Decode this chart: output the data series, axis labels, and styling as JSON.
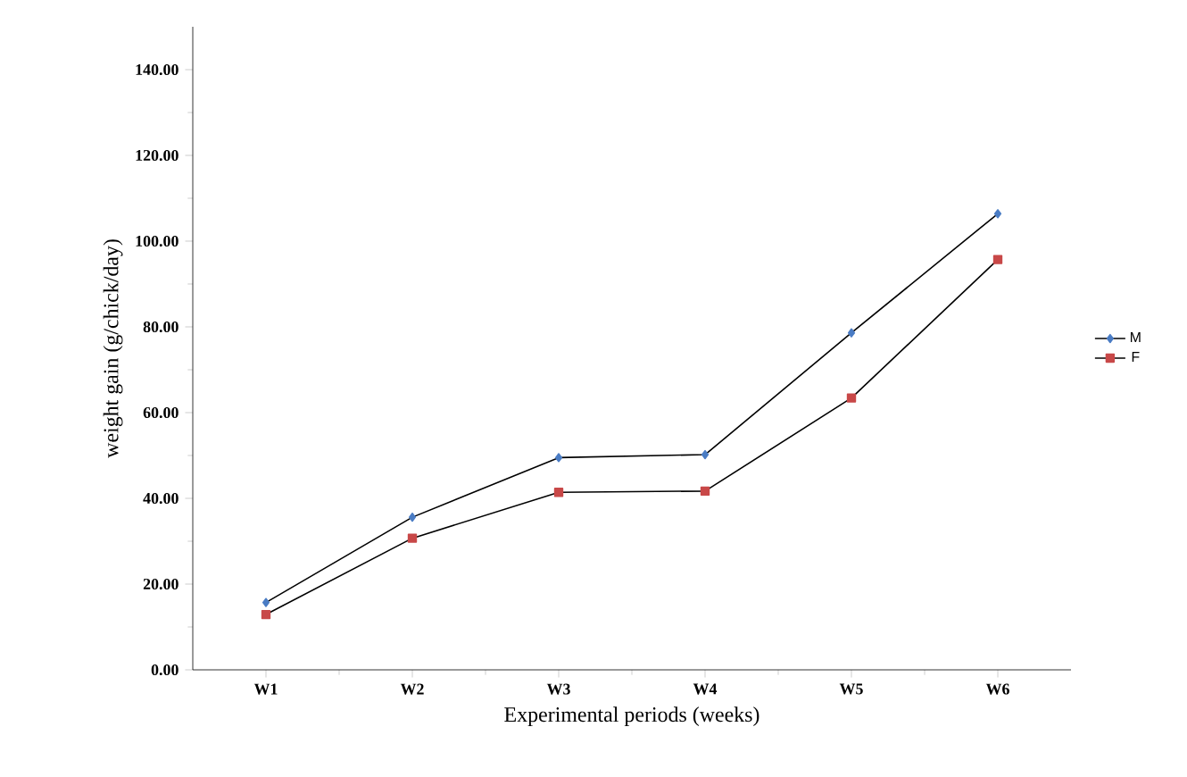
{
  "chart_data": {
    "type": "line",
    "xlabel": "Experimental periods (weeks)",
    "ylabel": "weight gain (g/chick/day)",
    "categories": [
      "W1",
      "W2",
      "W3",
      "W4",
      "W5",
      "W6"
    ],
    "series": [
      {
        "name": "M",
        "color": "#4a7cc4",
        "marker": "diamond",
        "values": [
          15.7,
          35.6,
          49.5,
          50.2,
          78.6,
          106.4
        ]
      },
      {
        "name": "F",
        "color": "#c84848",
        "marker": "square",
        "values": [
          12.9,
          30.7,
          41.4,
          41.7,
          63.4,
          95.7
        ]
      }
    ],
    "ylim": [
      0,
      150
    ],
    "yticks": [
      {
        "value": 0,
        "label": "0.00"
      },
      {
        "value": 20,
        "label": "20.00"
      },
      {
        "value": 40,
        "label": "40.00"
      },
      {
        "value": 60,
        "label": "60.00"
      },
      {
        "value": 80,
        "label": "80.00"
      },
      {
        "value": 100,
        "label": "100.00"
      },
      {
        "value": 120,
        "label": "120.00"
      },
      {
        "value": 140,
        "label": "140.00"
      }
    ],
    "grid": false,
    "legend": "right",
    "line_style": "solid"
  }
}
